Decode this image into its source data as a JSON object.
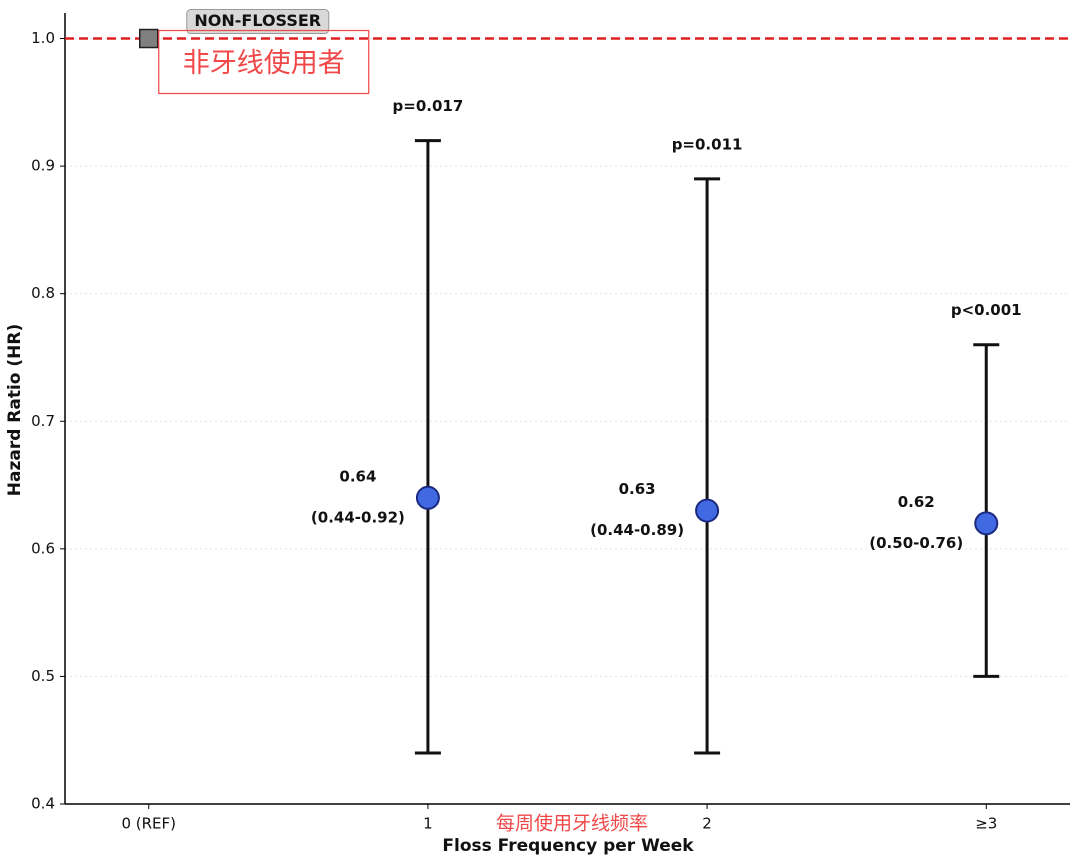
{
  "chart_data": {
    "type": "errorbar",
    "xlabel": "Floss Frequency per Week",
    "ylabel": "Hazard Ratio (HR)",
    "categories": [
      "0 (REF)",
      "1",
      "2",
      "≥3"
    ],
    "values": [
      1.0,
      0.64,
      0.63,
      0.62
    ],
    "lower": [
      null,
      0.44,
      0.44,
      0.5
    ],
    "upper": [
      null,
      0.92,
      0.89,
      0.76
    ],
    "ci_labels": [
      null,
      "(0.44-0.92)",
      "(0.44-0.89)",
      "(0.50-0.76)"
    ],
    "p_labels": [
      null,
      "p=0.017",
      "p=0.011",
      "p<0.001"
    ],
    "ref_label": "NON-FLOSSER",
    "ref_color": "#808080",
    "color": "#4169e1",
    "reference_line": {
      "value": 1.0,
      "color": "#e02020"
    },
    "overlay_labels": {
      "ref": "非牙线使用者",
      "xlabel": "每周使用牙线频率",
      "color": "#f04848"
    },
    "ylim": [
      0.4,
      1.02
    ],
    "yticks": [
      0.4,
      0.5,
      0.6,
      0.7,
      0.8,
      0.9,
      {
        "value": 1,
        "label": "1.0"
      }
    ],
    "grid": true
  }
}
